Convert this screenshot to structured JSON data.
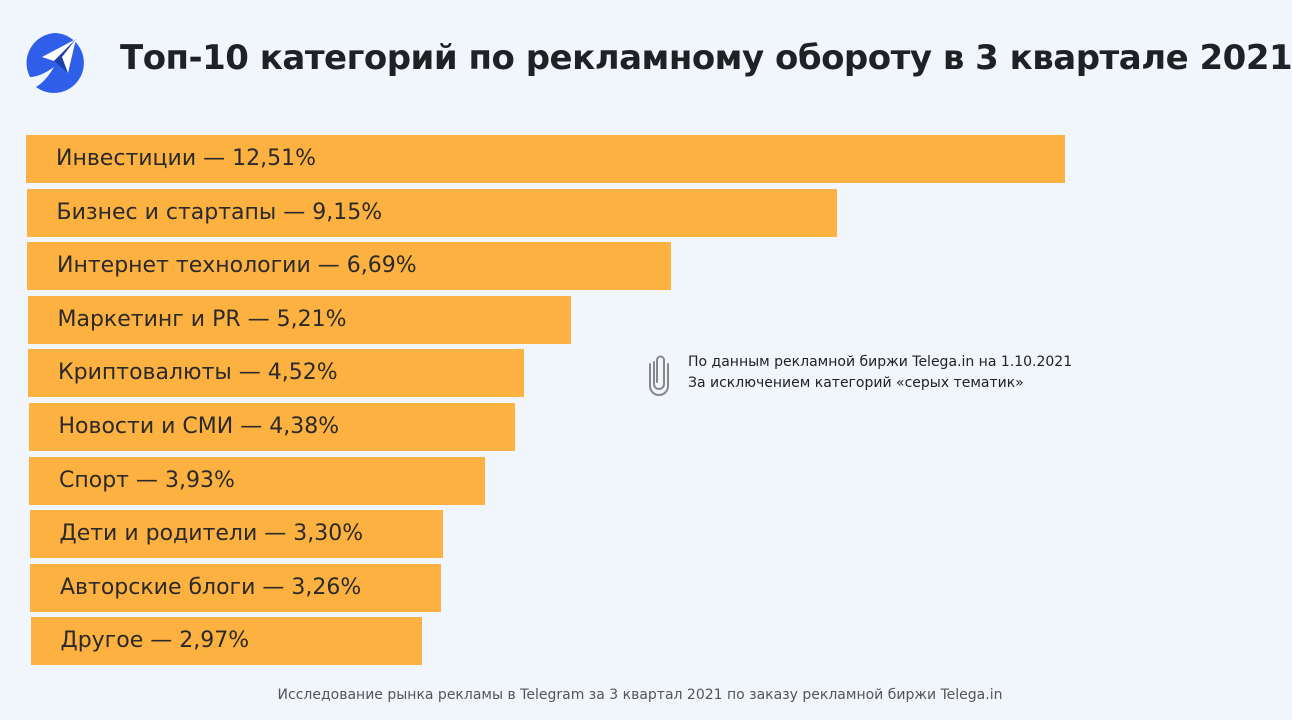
{
  "title": "Топ-10 категорий по рекламному обороту в 3 квартале 2021",
  "colors": {
    "bar": "#fdb141",
    "background": "#f1f5fc",
    "logo": "#2f5ee8"
  },
  "logo": {
    "icon": "paper-plane-logo"
  },
  "note": {
    "icon": "paperclip-icon",
    "lines": [
      "По данным рекламной биржи Telega.in на 1.10.2021",
      "За исключением категорий «серых тематик»"
    ]
  },
  "footer": "Исследование рынка рекламы в Telegram за 3 квартал 2021 по заказу рекламной биржи Telega.in",
  "chart_data": {
    "type": "bar",
    "orientation": "horizontal",
    "unit": "%",
    "categories": [
      "Инвестиции",
      "Бизнес и стартапы",
      "Интернет технологии",
      "Маркетинг и PR",
      "Криптовалюты",
      "Новости и СМИ",
      "Спорт",
      "Дети и родители",
      "Авторские блоги",
      "Другое"
    ],
    "values": [
      12.51,
      9.15,
      6.69,
      5.21,
      4.52,
      4.38,
      3.93,
      3.3,
      3.26,
      2.97
    ],
    "labels": [
      "Инвестиции — 12,51%",
      "Бизнес и стартапы — 9,15%",
      "Интернет технологии — 6,69%",
      "Маркетинг и PR — 5,21%",
      "Криптовалюты — 4,52%",
      "Новости и СМИ — 4,38%",
      "Спорт — 3,93%",
      "Дети и родители — 3,30%",
      "Авторские блоги — 3,26%",
      "Другое — 2,97%"
    ],
    "grid": false,
    "legend": "none"
  }
}
